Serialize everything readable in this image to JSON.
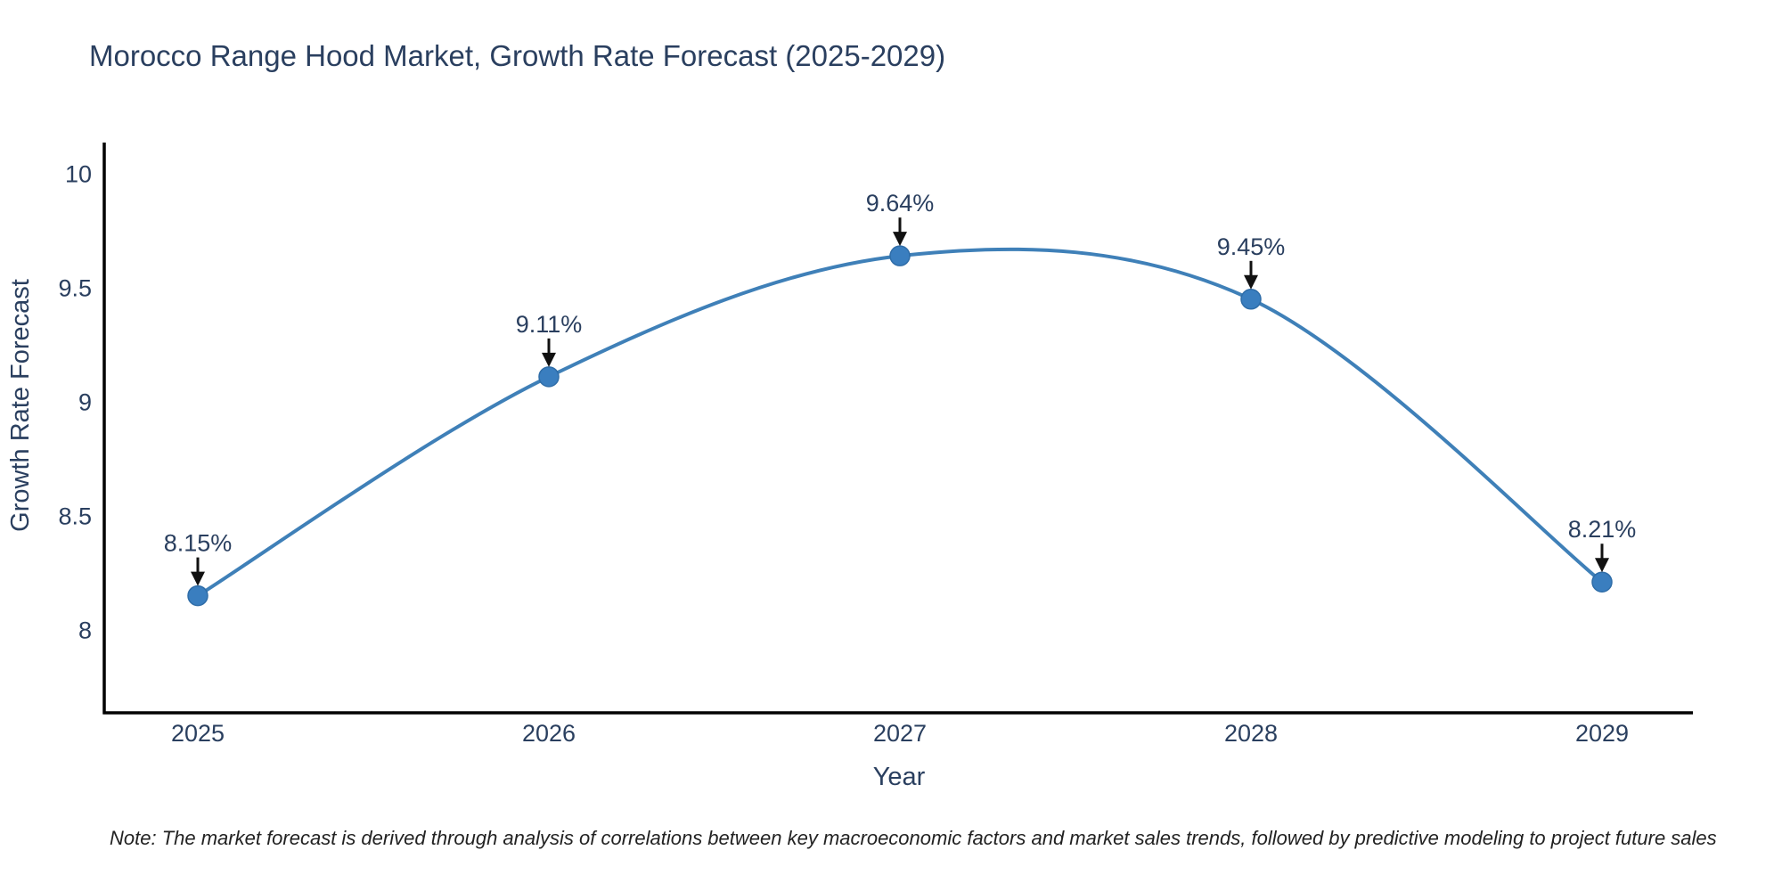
{
  "title": "Morocco Range Hood Market, Growth Rate Forecast (2025-2029)",
  "note": "Note: The market forecast is derived through analysis of correlations between key macroeconomic factors and market sales trends, followed by predictive modeling to project future sales",
  "chart_data": {
    "type": "line",
    "line_shape": "spline",
    "title": "Morocco Range Hood Market, Growth Rate Forecast (2025-2029)",
    "xlabel": "Year",
    "ylabel": "Growth Rate Forecast",
    "x": [
      2025,
      2026,
      2027,
      2028,
      2029
    ],
    "y": [
      8.15,
      9.11,
      9.64,
      9.45,
      8.21
    ],
    "point_labels": [
      "8.15%",
      "9.11%",
      "9.64%",
      "9.45%",
      "8.21%"
    ],
    "yticks": [
      8,
      8.5,
      9,
      9.5,
      10
    ],
    "ylim": [
      7.64,
      10.14
    ],
    "grid": false,
    "legend": "none",
    "colors": {
      "line": "#3f80b8",
      "marker_fill": "#3a7ebf",
      "marker_stroke": "#2f6da8",
      "axis": "#000000",
      "text": "#2a3f5f",
      "arrow": "#111111",
      "background": "#ffffff"
    }
  }
}
